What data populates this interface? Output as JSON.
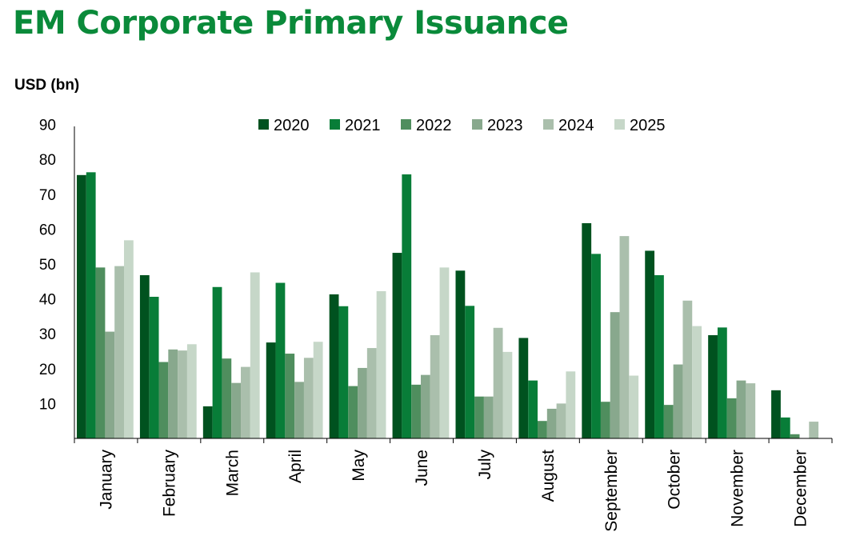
{
  "chart_data": {
    "type": "bar",
    "title": "EM Corporate Primary Issuance",
    "ylabel": "USD (bn)",
    "xlabel": "",
    "ylim": [
      0,
      90
    ],
    "yticks": [
      10,
      20,
      30,
      40,
      50,
      60,
      70,
      80,
      90
    ],
    "grid": false,
    "legend_position": "top",
    "categories": [
      "January",
      "February",
      "March",
      "April",
      "May",
      "June",
      "July",
      "August",
      "September",
      "October",
      "November",
      "December"
    ],
    "series": [
      {
        "name": "2020",
        "color": "#00521f",
        "values": [
          75.5,
          46.8,
          9.2,
          27.5,
          41.3,
          53.2,
          48.1,
          28.8,
          61.7,
          53.8,
          29.6,
          13.8
        ]
      },
      {
        "name": "2021",
        "color": "#087d38",
        "values": [
          76.3,
          40.6,
          43.4,
          44.6,
          37.9,
          75.7,
          38.0,
          16.6,
          52.9,
          46.8,
          31.8,
          6.0
        ]
      },
      {
        "name": "2022",
        "color": "#4f8e5e",
        "values": [
          49.0,
          21.9,
          22.9,
          24.3,
          15.0,
          15.4,
          12.0,
          5.0,
          10.5,
          9.6,
          11.5,
          1.2
        ]
      },
      {
        "name": "2023",
        "color": "#88a88d",
        "values": [
          30.6,
          25.5,
          15.9,
          16.2,
          20.2,
          18.2,
          12.0,
          8.5,
          36.2,
          21.2,
          16.6,
          null
        ]
      },
      {
        "name": "2024",
        "color": "#aabfac",
        "values": [
          49.4,
          25.2,
          20.5,
          23.1,
          25.9,
          29.6,
          31.7,
          10.0,
          58.0,
          39.5,
          15.8,
          4.8
        ]
      },
      {
        "name": "2025",
        "color": "#c6d7c8",
        "values": [
          56.8,
          27.0,
          47.6,
          27.7,
          42.2,
          49.0,
          24.8,
          19.2,
          18.0,
          32.2,
          null,
          null
        ]
      }
    ]
  }
}
